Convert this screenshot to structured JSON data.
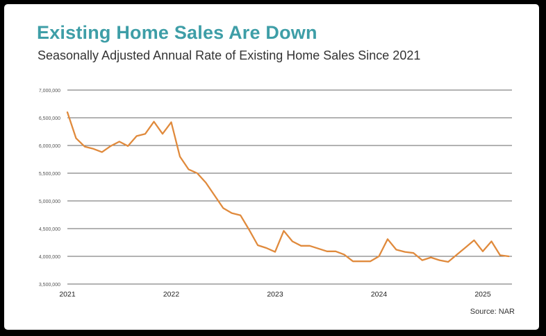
{
  "theme": {
    "title_color": "#3e9ea7",
    "line_color": "#e08a3c",
    "grid_color": "#666666"
  },
  "header": {
    "title": "Existing Home Sales Are Down",
    "subtitle": "Seasonally Adjusted Annual Rate of Existing Home Sales Since 2021"
  },
  "source": "Source: NAR",
  "chart_data": {
    "type": "line",
    "title": "Existing Home Sales Are Down",
    "subtitle": "Seasonally Adjusted Annual Rate of Existing Home Sales Since 2021",
    "xlabel": "",
    "ylabel": "",
    "ylim": [
      3500000,
      7000000
    ],
    "yticks": [
      3500000,
      4000000,
      4500000,
      5000000,
      5500000,
      6000000,
      6500000,
      7000000
    ],
    "ytick_labels": [
      "3,500,000",
      "4,000,000",
      "4,500,000",
      "5,000,000",
      "5,500,000",
      "6,000,000",
      "6,500,000",
      "7,000,000"
    ],
    "xticks": [
      "2021",
      "2022",
      "2023",
      "2024",
      "2025"
    ],
    "grid": "horizontal",
    "legend": "none",
    "series": [
      {
        "x": [
          "2021-01",
          "2021-02",
          "2021-03",
          "2021-04",
          "2021-05",
          "2021-06",
          "2021-07",
          "2021-08",
          "2021-09",
          "2021-10",
          "2021-11",
          "2021-12",
          "2022-01",
          "2022-02",
          "2022-03",
          "2022-04",
          "2022-05",
          "2022-06",
          "2022-07",
          "2022-08",
          "2022-09",
          "2022-10",
          "2022-11",
          "2022-12",
          "2023-01",
          "2023-02",
          "2023-03",
          "2023-04",
          "2023-05",
          "2023-06",
          "2023-07",
          "2023-08",
          "2023-09",
          "2023-10",
          "2023-11",
          "2023-12",
          "2024-01",
          "2024-02",
          "2024-03",
          "2024-04",
          "2024-05",
          "2024-06",
          "2024-07",
          "2024-08",
          "2024-09",
          "2024-10",
          "2024-11",
          "2024-12",
          "2025-01",
          "2025-02",
          "2025-03",
          "2025-04"
        ],
        "values": [
          6600000,
          6130000,
          5980000,
          5940000,
          5880000,
          5990000,
          6070000,
          5990000,
          6170000,
          6210000,
          6430000,
          6210000,
          6420000,
          5800000,
          5570000,
          5500000,
          5330000,
          5100000,
          4870000,
          4780000,
          4740000,
          4480000,
          4200000,
          4150000,
          4080000,
          4460000,
          4270000,
          4190000,
          4190000,
          4140000,
          4090000,
          4090000,
          4030000,
          3910000,
          3910000,
          3910000,
          4000000,
          4310000,
          4120000,
          4080000,
          4060000,
          3930000,
          3980000,
          3930000,
          3900000,
          4030000,
          4160000,
          4290000,
          4090000,
          4270000,
          4020000,
          4000000
        ]
      }
    ]
  }
}
